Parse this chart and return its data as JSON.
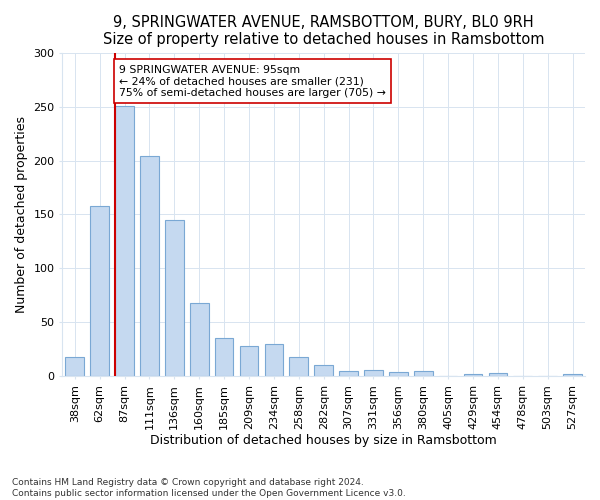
{
  "title": "9, SPRINGWATER AVENUE, RAMSBOTTOM, BURY, BL0 9RH",
  "subtitle": "Size of property relative to detached houses in Ramsbottom",
  "xlabel": "Distribution of detached houses by size in Ramsbottom",
  "ylabel": "Number of detached properties",
  "categories": [
    "38sqm",
    "62sqm",
    "87sqm",
    "111sqm",
    "136sqm",
    "160sqm",
    "185sqm",
    "209sqm",
    "234sqm",
    "258sqm",
    "282sqm",
    "307sqm",
    "331sqm",
    "356sqm",
    "380sqm",
    "405sqm",
    "429sqm",
    "454sqm",
    "478sqm",
    "503sqm",
    "527sqm"
  ],
  "values": [
    18,
    158,
    251,
    204,
    145,
    68,
    35,
    28,
    30,
    18,
    10,
    5,
    6,
    4,
    5,
    0,
    2,
    3,
    0,
    0,
    2
  ],
  "bar_color": "#c5d9f0",
  "bar_edge_color": "#7aa8d4",
  "property_line_color": "#cc0000",
  "property_bar_index": 2,
  "annotation_text": "9 SPRINGWATER AVENUE: 95sqm\n← 24% of detached houses are smaller (231)\n75% of semi-detached houses are larger (705) →",
  "annotation_box_color": "#ffffff",
  "annotation_box_edge": "#cc0000",
  "ylim": [
    0,
    300
  ],
  "yticks": [
    0,
    50,
    100,
    150,
    200,
    250,
    300
  ],
  "footer": "Contains HM Land Registry data © Crown copyright and database right 2024.\nContains public sector information licensed under the Open Government Licence v3.0.",
  "bg_color": "#ffffff",
  "grid_color": "#d8e4f0",
  "title_fontsize": 10.5,
  "subtitle_fontsize": 9.5,
  "axis_label_fontsize": 9,
  "tick_fontsize": 8,
  "footer_fontsize": 6.5,
  "bar_width": 0.75
}
